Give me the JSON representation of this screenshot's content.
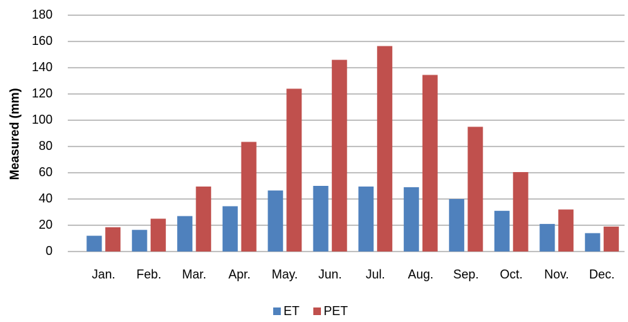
{
  "chart_data": {
    "type": "bar",
    "y_label": "Measured (mm)",
    "categories": [
      "Jan.",
      "Feb.",
      "Mar.",
      "Apr.",
      "May.",
      "Jun.",
      "Jul.",
      "Aug.",
      "Sep.",
      "Oct.",
      "Nov.",
      "Dec."
    ],
    "series": [
      {
        "name": "ET",
        "color": "#4f81bd",
        "values": [
          12,
          16.5,
          27,
          34.5,
          46.5,
          50,
          49.5,
          49,
          40,
          31,
          21,
          14
        ]
      },
      {
        "name": "PET",
        "color": "#c0504d",
        "values": [
          18.5,
          25,
          49.5,
          83.5,
          124,
          146,
          156.5,
          134.5,
          95,
          60.5,
          32,
          19
        ]
      }
    ],
    "ylim": [
      0,
      180
    ],
    "yticks": [
      0,
      20,
      40,
      60,
      80,
      100,
      120,
      140,
      160,
      180
    ],
    "grid": true,
    "legend": "bottom"
  }
}
